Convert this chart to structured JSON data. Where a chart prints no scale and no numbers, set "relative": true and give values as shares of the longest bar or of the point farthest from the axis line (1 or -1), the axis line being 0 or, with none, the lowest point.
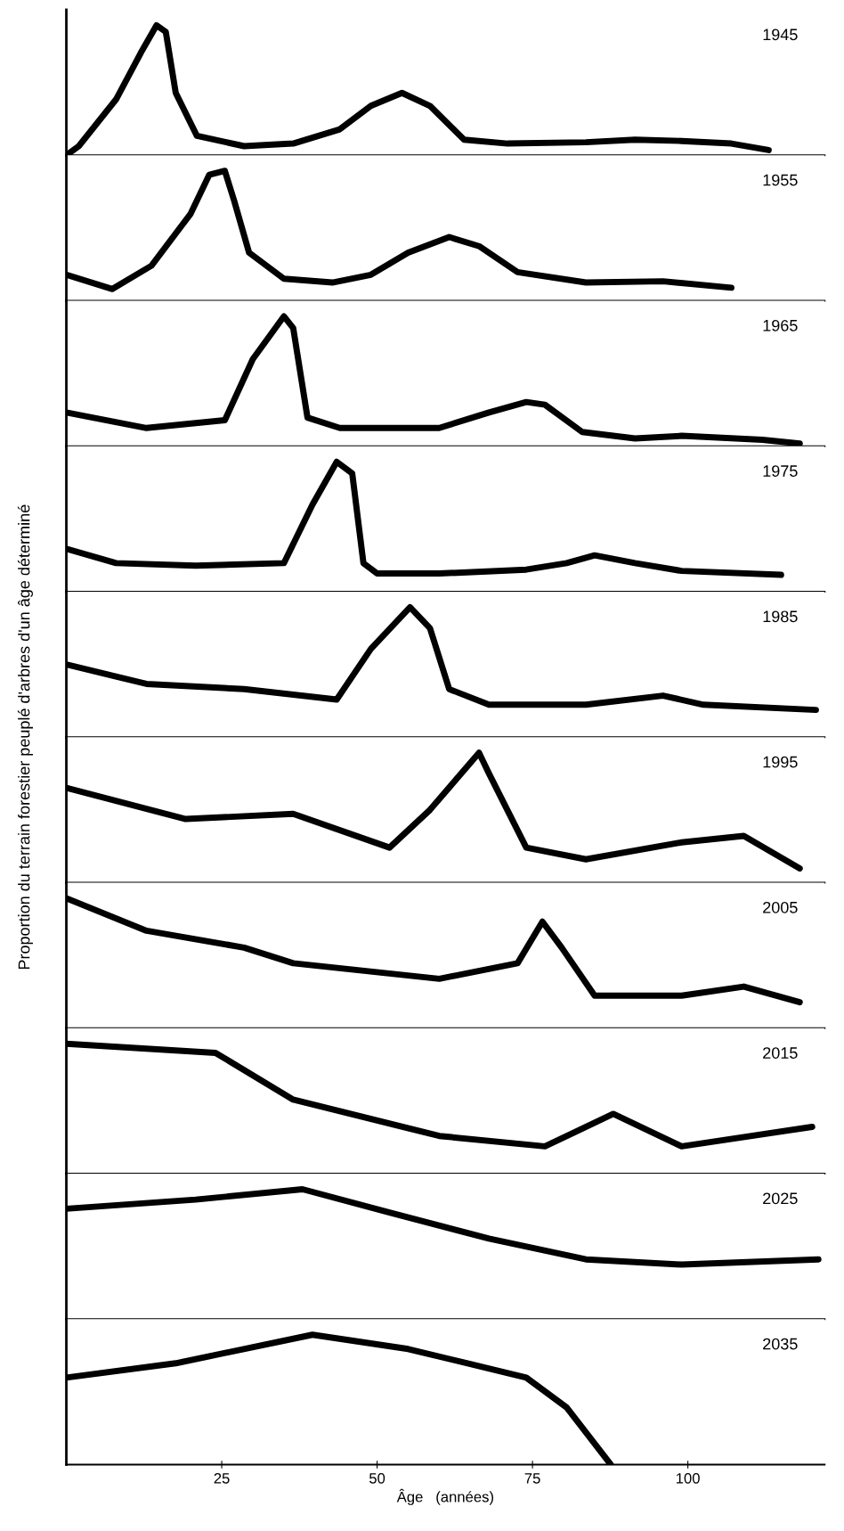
{
  "chart_data": [
    {
      "type": "line",
      "relative": true,
      "title": "1945",
      "xlim": [
        0,
        122
      ],
      "tick_labels": false,
      "series": [
        {
          "color": "#000000",
          "x": [
            0,
            2,
            8,
            12,
            14.5,
            16,
            17.6,
            21,
            28.6,
            36.5,
            44,
            49,
            54,
            58.5,
            64,
            71,
            83.6,
            91.5,
            99,
            107,
            113
          ],
          "values": [
            0,
            0.07,
            0.43,
            0.79,
            1,
            0.95,
            0.48,
            0.15,
            0.07,
            0.09,
            0.2,
            0.38,
            0.48,
            0.38,
            0.12,
            0.09,
            0.1,
            0.12,
            0.11,
            0.09,
            0.04
          ]
        }
      ]
    },
    {
      "type": "line",
      "relative": true,
      "title": "1955",
      "xlim": [
        0,
        122
      ],
      "tick_labels": false,
      "series": [
        {
          "color": "#000000",
          "x": [
            0,
            7.4,
            13.7,
            20,
            23,
            25.5,
            27,
            29.4,
            35,
            42.8,
            49,
            55,
            61.6,
            66.4,
            72.6,
            83.6,
            96,
            107
          ],
          "values": [
            0.2,
            0.09,
            0.27,
            0.67,
            0.97,
            1,
            0.77,
            0.37,
            0.17,
            0.14,
            0.2,
            0.37,
            0.49,
            0.42,
            0.22,
            0.14,
            0.15,
            0.1
          ]
        }
      ]
    },
    {
      "type": "line",
      "relative": true,
      "title": "1965",
      "xlim": [
        0,
        122
      ],
      "tick_labels": false,
      "series": [
        {
          "color": "#000000",
          "x": [
            0,
            12.9,
            25.5,
            30,
            35,
            36.5,
            38.8,
            44,
            60,
            68,
            74,
            77,
            83,
            91.5,
            99,
            112,
            118
          ],
          "values": [
            0.26,
            0.14,
            0.2,
            0.67,
            1,
            0.91,
            0.22,
            0.14,
            0.14,
            0.26,
            0.34,
            0.32,
            0.11,
            0.06,
            0.08,
            0.05,
            0.02
          ]
        }
      ]
    },
    {
      "type": "line",
      "relative": true,
      "title": "1975",
      "xlim": [
        0,
        122
      ],
      "tick_labels": false,
      "series": [
        {
          "color": "#000000",
          "x": [
            0,
            8,
            20.8,
            35,
            39.6,
            43.5,
            46,
            47.8,
            50,
            60,
            74,
            80.5,
            85,
            91.5,
            99,
            115
          ],
          "values": [
            0.33,
            0.22,
            0.2,
            0.22,
            0.67,
            1,
            0.91,
            0.22,
            0.14,
            0.14,
            0.17,
            0.22,
            0.28,
            0.22,
            0.16,
            0.13
          ]
        }
      ]
    },
    {
      "type": "line",
      "relative": true,
      "title": "1985",
      "ylabel": "Proportion du terrain forestier peuplé d'arbres d'un âge déterminé",
      "xlim": [
        0,
        122
      ],
      "tick_labels": false,
      "series": [
        {
          "color": "#000000",
          "x": [
            0,
            12.9,
            28.6,
            43.5,
            49,
            55.3,
            58.5,
            61.6,
            68,
            83.6,
            96,
            102.5,
            120.6
          ],
          "values": [
            0.56,
            0.41,
            0.37,
            0.29,
            0.68,
            1,
            0.84,
            0.37,
            0.25,
            0.25,
            0.32,
            0.25,
            0.21
          ]
        }
      ]
    },
    {
      "type": "line",
      "relative": true,
      "title": "1995",
      "xlim": [
        0,
        122
      ],
      "tick_labels": false,
      "series": [
        {
          "color": "#000000",
          "x": [
            0,
            19.2,
            36.5,
            52,
            58.5,
            66.4,
            68,
            74,
            83.6,
            99,
            109,
            118
          ],
          "values": [
            0.73,
            0.49,
            0.53,
            0.27,
            0.56,
            1,
            0.84,
            0.27,
            0.18,
            0.31,
            0.36,
            0.11
          ]
        }
      ]
    },
    {
      "type": "line",
      "relative": true,
      "title": "2005",
      "xlim": [
        0,
        122
      ],
      "tick_labels": false,
      "series": [
        {
          "color": "#000000",
          "x": [
            0,
            12.9,
            28.6,
            36.5,
            60,
            72.6,
            76.6,
            79.7,
            85,
            99,
            109,
            118
          ],
          "values": [
            1,
            0.75,
            0.62,
            0.5,
            0.38,
            0.5,
            0.82,
            0.62,
            0.25,
            0.25,
            0.32,
            0.2
          ]
        }
      ]
    },
    {
      "type": "line",
      "relative": true,
      "title": "2015",
      "xlim": [
        0,
        122
      ],
      "tick_labels": false,
      "series": [
        {
          "color": "#000000",
          "x": [
            0,
            24,
            36.5,
            60,
            77,
            88,
            99,
            120
          ],
          "values": [
            1,
            0.93,
            0.57,
            0.29,
            0.21,
            0.46,
            0.21,
            0.36
          ]
        }
      ]
    },
    {
      "type": "line",
      "relative": true,
      "title": "2025",
      "xlim": [
        0,
        122
      ],
      "tick_labels": false,
      "series": [
        {
          "color": "#000000",
          "x": [
            0,
            20.8,
            38,
            52,
            68,
            83.6,
            99,
            121
          ],
          "values": [
            0.85,
            0.92,
            1,
            0.82,
            0.62,
            0.46,
            0.42,
            0.46
          ]
        }
      ]
    },
    {
      "type": "line",
      "relative": true,
      "title": "2035",
      "xlabel": "Âge   (années)",
      "xlim": [
        0,
        122
      ],
      "xticks": [
        25,
        50,
        75,
        100
      ],
      "tick_labels": "x",
      "series": [
        {
          "color": "#000000",
          "x": [
            0,
            17.6,
            39.6,
            55,
            74,
            80.5,
            87.6
          ],
          "values": [
            0.67,
            0.78,
            1,
            0.89,
            0.67,
            0.44,
            0
          ]
        }
      ]
    }
  ]
}
